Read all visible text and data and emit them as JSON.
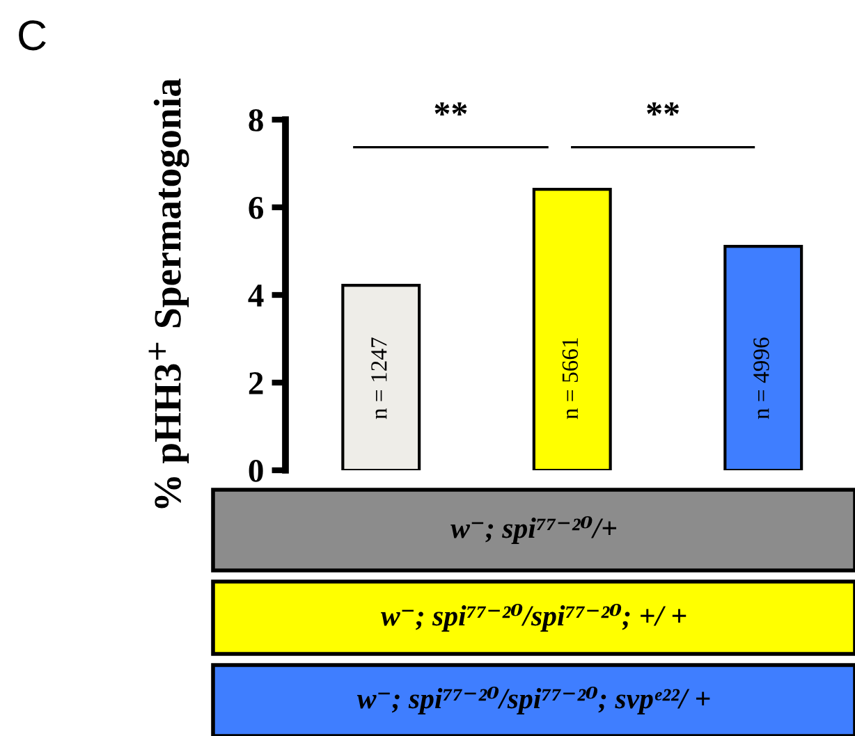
{
  "chart_data": {
    "type": "bar",
    "ylabel": "% pHH3$^{+}$ Spermatogonia",
    "categories": [
      null,
      null,
      null
    ],
    "series": [
      {
        "values": [
          4.22,
          6.41,
          5.11
        ],
        "colors": [
          "#eeede8",
          "#ffff00",
          "#3f7eff"
        ]
      }
    ],
    "ylim": [
      0,
      8
    ],
    "yticks": [
      0,
      2,
      4,
      6,
      8
    ],
    "grid": false,
    "legend": false,
    "annotations": [
      "C",
      "**",
      "**",
      "w⁻; spi⁷⁷⁻²⁰/+",
      "w⁻; spi⁷⁷⁻²⁰/spi⁷⁷⁻²⁰; +/ +",
      "w⁻; spi⁷⁷⁻²⁰/spi⁷⁷⁻²⁰; svpᵉ²²/ +",
      "n = 1247",
      "n = 5661",
      "n = 4996"
    ]
  }
}
